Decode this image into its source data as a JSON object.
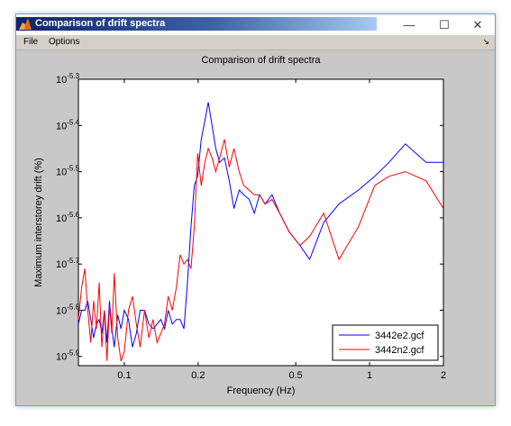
{
  "window": {
    "title": "Comparison of drift spectra",
    "minimize_glyph": "—",
    "maximize_glyph": "☐",
    "close_glyph": "✕"
  },
  "menu": {
    "items": [
      "File",
      "Options"
    ],
    "dock_glyph": "↘"
  },
  "chart_data": {
    "type": "line",
    "title": "Comparison of drift spectra",
    "xlabel": "Frequency (Hz)",
    "ylabel": "Maximum interstorey drift (%)",
    "xscale": "log",
    "yscale": "log",
    "xlim": [
      0.065,
      2
    ],
    "ylim_exponent": [
      -5.92,
      -5.3
    ],
    "xticks": [
      0.1,
      0.2,
      0.5,
      1,
      2
    ],
    "xtick_labels": [
      "0.1",
      "0.2",
      "0.5",
      "1",
      "2"
    ],
    "yticks_exponent": [
      -5.9,
      -5.8,
      -5.7,
      -5.6,
      -5.5,
      -5.4,
      -5.3
    ],
    "ytick_labels": [
      "-5.9",
      "-5.8",
      "-5.7",
      "-5.6",
      "-5.5",
      "-5.4",
      "-5.3"
    ],
    "ytick_base": "10",
    "grid": false,
    "legend_position": "bottom-right",
    "series": [
      {
        "name": "3442e2.gcf",
        "color": "#0000ff",
        "x": [
          0.065,
          0.067,
          0.069,
          0.071,
          0.073,
          0.075,
          0.077,
          0.079,
          0.081,
          0.083,
          0.085,
          0.087,
          0.089,
          0.091,
          0.094,
          0.097,
          0.1,
          0.104,
          0.108,
          0.112,
          0.116,
          0.121,
          0.126,
          0.131,
          0.136,
          0.141,
          0.146,
          0.151,
          0.157,
          0.163,
          0.169,
          0.175,
          0.181,
          0.187,
          0.193,
          0.199,
          0.206,
          0.213,
          0.22,
          0.228,
          0.236,
          0.245,
          0.256,
          0.268,
          0.28,
          0.294,
          0.307,
          0.323,
          0.339,
          0.356,
          0.375,
          0.4,
          0.43,
          0.47,
          0.52,
          0.57,
          0.65,
          0.75,
          0.9,
          1.05,
          1.2,
          1.4,
          1.7,
          2.0
        ],
        "y": [
          -5.83,
          -5.8,
          -5.8,
          -5.78,
          -5.82,
          -5.86,
          -5.83,
          -5.82,
          -5.85,
          -5.8,
          -5.87,
          -5.78,
          -5.84,
          -5.88,
          -5.81,
          -5.84,
          -5.8,
          -5.82,
          -5.88,
          -5.85,
          -5.8,
          -5.8,
          -5.83,
          -5.84,
          -5.83,
          -5.82,
          -5.84,
          -5.8,
          -5.83,
          -5.82,
          -5.82,
          -5.84,
          -5.74,
          -5.62,
          -5.53,
          -5.51,
          -5.43,
          -5.39,
          -5.35,
          -5.4,
          -5.45,
          -5.48,
          -5.47,
          -5.52,
          -5.58,
          -5.54,
          -5.55,
          -5.56,
          -5.59,
          -5.55,
          -5.57,
          -5.55,
          -5.59,
          -5.63,
          -5.66,
          -5.69,
          -5.61,
          -5.57,
          -5.54,
          -5.51,
          -5.48,
          -5.44,
          -5.48,
          -5.48
        ]
      },
      {
        "name": "3442n2.gcf",
        "color": "#ff0000",
        "x": [
          0.065,
          0.067,
          0.069,
          0.071,
          0.073,
          0.075,
          0.077,
          0.079,
          0.081,
          0.083,
          0.085,
          0.087,
          0.089,
          0.091,
          0.094,
          0.097,
          0.1,
          0.104,
          0.108,
          0.112,
          0.116,
          0.121,
          0.126,
          0.131,
          0.136,
          0.141,
          0.146,
          0.151,
          0.157,
          0.163,
          0.169,
          0.175,
          0.181,
          0.187,
          0.193,
          0.199,
          0.206,
          0.213,
          0.22,
          0.228,
          0.236,
          0.245,
          0.256,
          0.268,
          0.28,
          0.294,
          0.307,
          0.323,
          0.339,
          0.356,
          0.375,
          0.4,
          0.43,
          0.47,
          0.52,
          0.57,
          0.65,
          0.75,
          0.9,
          1.05,
          1.2,
          1.4,
          1.7,
          2.0
        ],
        "y": [
          -5.82,
          -5.75,
          -5.71,
          -5.8,
          -5.87,
          -5.78,
          -5.84,
          -5.74,
          -5.88,
          -5.8,
          -5.91,
          -5.79,
          -5.85,
          -5.72,
          -5.86,
          -5.91,
          -5.89,
          -5.8,
          -5.77,
          -5.83,
          -5.88,
          -5.8,
          -5.86,
          -5.82,
          -5.87,
          -5.85,
          -5.83,
          -5.77,
          -5.8,
          -5.75,
          -5.68,
          -5.7,
          -5.69,
          -5.71,
          -5.62,
          -5.46,
          -5.53,
          -5.48,
          -5.45,
          -5.47,
          -5.5,
          -5.47,
          -5.43,
          -5.49,
          -5.45,
          -5.5,
          -5.53,
          -5.54,
          -5.55,
          -5.55,
          -5.57,
          -5.56,
          -5.59,
          -5.63,
          -5.66,
          -5.64,
          -5.59,
          -5.69,
          -5.62,
          -5.53,
          -5.51,
          -5.5,
          -5.52,
          -5.58
        ]
      }
    ]
  }
}
